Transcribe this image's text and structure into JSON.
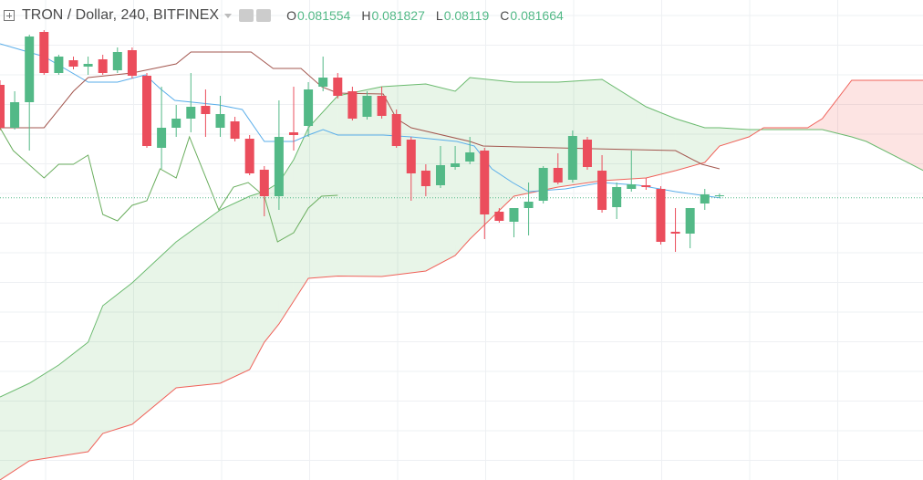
{
  "chart_data": {
    "type": "candlestick",
    "title": "TRON / Dollar, 240, BITFINEX",
    "legend_ohlc": [
      {
        "label": "O",
        "value": 0.081554
      },
      {
        "label": "H",
        "value": 0.081827
      },
      {
        "label": "L",
        "value": 0.08119
      },
      {
        "label": "C",
        "value": 0.081664
      }
    ],
    "xlim": [
      0,
      62.86
    ],
    "ylim": [
      0.07548,
      0.086
    ],
    "up_color": "#53b987",
    "down_color": "#eb4d5c",
    "candles": {
      "x": [
        0,
        1,
        2,
        3,
        4,
        5,
        6,
        7,
        8,
        9,
        10,
        11,
        12,
        13,
        14,
        15,
        16,
        17,
        18,
        19,
        20,
        21,
        22,
        23,
        24,
        25,
        26,
        27,
        28,
        29,
        30,
        31,
        32,
        33,
        34,
        35,
        36,
        37,
        38,
        39,
        40,
        41,
        42,
        43,
        44,
        45,
        46,
        47,
        48,
        49
      ],
      "open": [
        0.08414,
        0.0832,
        0.08376,
        0.0853,
        0.0844,
        0.08468,
        0.08454,
        0.0847,
        0.08446,
        0.0849,
        0.08434,
        0.08276,
        0.0832,
        0.0834,
        0.08368,
        0.0832,
        0.08334,
        0.08296,
        0.08228,
        0.0817,
        0.0831,
        0.08324,
        0.0841,
        0.0843,
        0.084,
        0.08344,
        0.0839,
        0.0835,
        0.08294,
        0.08226,
        0.08194,
        0.08234,
        0.08246,
        0.0827,
        0.08136,
        0.08114,
        0.08144,
        0.0816,
        0.08232,
        0.08206,
        0.08294,
        0.08226,
        0.08146,
        0.08186,
        0.08194,
        0.08186,
        0.08092,
        0.08088,
        0.08154,
        0.0817
      ],
      "high": [
        0.08424,
        0.084,
        0.08524,
        0.08534,
        0.0848,
        0.08476,
        0.08476,
        0.0848,
        0.08496,
        0.08496,
        0.0844,
        0.0841,
        0.0837,
        0.0844,
        0.08404,
        0.0839,
        0.08344,
        0.08304,
        0.08236,
        0.0838,
        0.0841,
        0.0842,
        0.08476,
        0.0844,
        0.0841,
        0.084,
        0.0841,
        0.0836,
        0.083,
        0.0824,
        0.0828,
        0.0828,
        0.083,
        0.08276,
        0.08144,
        0.08144,
        0.082,
        0.08236,
        0.08264,
        0.08314,
        0.083,
        0.0826,
        0.082,
        0.0827,
        0.0821,
        0.08192,
        0.08144,
        0.08144,
        0.08186,
        0.08176
      ],
      "low": [
        0.08314,
        0.08316,
        0.0827,
        0.08436,
        0.08436,
        0.08448,
        0.08436,
        0.08436,
        0.0844,
        0.08428,
        0.08276,
        0.0823,
        0.083,
        0.0831,
        0.083,
        0.083,
        0.0829,
        0.08216,
        0.08126,
        0.0814,
        0.0827,
        0.083,
        0.084,
        0.08384,
        0.08336,
        0.08338,
        0.0834,
        0.08276,
        0.0816,
        0.0817,
        0.08188,
        0.08228,
        0.0824,
        0.08076,
        0.08112,
        0.0808,
        0.08084,
        0.08154,
        0.08196,
        0.082,
        0.08228,
        0.08134,
        0.0812,
        0.0818,
        0.08184,
        0.08064,
        0.08048,
        0.08056,
        0.0814,
        0.08166
      ],
      "close": [
        0.0832,
        0.08376,
        0.0852,
        0.0844,
        0.08476,
        0.08454,
        0.0846,
        0.0844,
        0.08486,
        0.08434,
        0.0828,
        0.0832,
        0.0834,
        0.08366,
        0.0835,
        0.0835,
        0.08296,
        0.0822,
        0.0817,
        0.083,
        0.08304,
        0.08404,
        0.0843,
        0.0839,
        0.0834,
        0.0839,
        0.08346,
        0.0828,
        0.0822,
        0.08192,
        0.08238,
        0.08242,
        0.08266,
        0.0813,
        0.08116,
        0.08144,
        0.08158,
        0.08232,
        0.082,
        0.08302,
        0.08234,
        0.0814,
        0.0819,
        0.08196,
        0.0819,
        0.0807,
        0.08088,
        0.08144,
        0.08174,
        0.08172
      ]
    },
    "cloud": {
      "x": [
        0,
        2,
        4,
        6,
        7,
        9,
        12,
        15,
        17,
        18,
        19,
        20,
        21,
        23,
        26,
        29,
        31,
        32,
        35,
        38,
        41,
        44,
        46,
        48,
        49,
        51,
        52,
        55,
        56,
        58,
        59,
        62.9
      ],
      "span_a": [
        0.0773,
        0.0776,
        0.078,
        0.0785,
        0.0793,
        0.0798,
        0.0807,
        0.0814,
        0.0817,
        0.0818,
        0.082,
        0.0825,
        0.0832,
        0.0839,
        0.0841,
        0.08416,
        0.084,
        0.0843,
        0.0842,
        0.0842,
        0.08426,
        0.08366,
        0.0834,
        0.0832,
        0.0832,
        0.08316,
        0.08316,
        0.08316,
        0.08316,
        0.083,
        0.0829,
        0.08226
      ],
      "span_b": [
        0.07548,
        0.0759,
        0.076,
        0.0761,
        0.0765,
        0.0767,
        0.0775,
        0.0776,
        0.0779,
        0.0785,
        0.0789,
        0.0794,
        0.0799,
        0.07995,
        0.07994,
        0.08006,
        0.0804,
        0.08076,
        0.0817,
        0.0819,
        0.08204,
        0.0821,
        0.08226,
        0.08244,
        0.0828,
        0.083,
        0.0832,
        0.0832,
        0.0834,
        0.08424,
        0.08424,
        0.08424
      ],
      "span_a_color": "#6aba6e",
      "span_b_color": "#f0625a",
      "fill_up": "rgba(76,175,80,0.13)",
      "fill_down": "rgba(244,67,54,0.14)"
    },
    "lines": [
      {
        "color": "#5aaeea",
        "x": [
          0,
          3,
          6,
          8,
          9.9,
          10.9,
          11.9,
          14.9,
          16.5,
          18,
          20,
          21,
          22,
          23,
          26.1,
          28,
          31.1,
          32.3,
          33.5,
          34.9,
          36,
          38.5,
          41,
          43.5,
          46,
          49.1
        ],
        "values": [
          0.08504,
          0.08476,
          0.0842,
          0.0842,
          0.08436,
          0.08406,
          0.0838,
          0.0837,
          0.0836,
          0.0829,
          0.0829,
          0.08304,
          0.08316,
          0.08304,
          0.08304,
          0.083,
          0.0829,
          0.0828,
          0.0823,
          0.082,
          0.0818,
          0.08186,
          0.082,
          0.08194,
          0.0818,
          0.08166
        ]
      },
      {
        "color": "#a3574f",
        "x": [
          0,
          3,
          5,
          6,
          9,
          12,
          13,
          17.1,
          18.6,
          20.5,
          21.9,
          23,
          26.1,
          27,
          28,
          32,
          32.9,
          37.9,
          46,
          47.8,
          49
        ],
        "values": [
          0.0832,
          0.0832,
          0.084,
          0.0843,
          0.0844,
          0.0846,
          0.08486,
          0.08486,
          0.0845,
          0.0845,
          0.0841,
          0.08396,
          0.08394,
          0.0834,
          0.0832,
          0.0829,
          0.0828,
          0.08276,
          0.0827,
          0.0824,
          0.0823
        ]
      },
      {
        "color": "#6aae5e",
        "x": [
          0,
          0.9,
          3,
          4,
          5,
          6,
          7,
          8,
          9,
          10,
          10.9,
          12,
          12.9,
          14.9,
          15.9,
          16.9,
          18,
          18.9,
          20,
          21,
          21.9,
          23
        ],
        "values": [
          0.0832,
          0.0827,
          0.0821,
          0.0824,
          0.0824,
          0.0826,
          0.0813,
          0.08116,
          0.0815,
          0.0816,
          0.0823,
          0.0821,
          0.083,
          0.0814,
          0.0819,
          0.082,
          0.0817,
          0.0807,
          0.0809,
          0.08144,
          0.0817,
          0.08172
        ]
      }
    ]
  }
}
